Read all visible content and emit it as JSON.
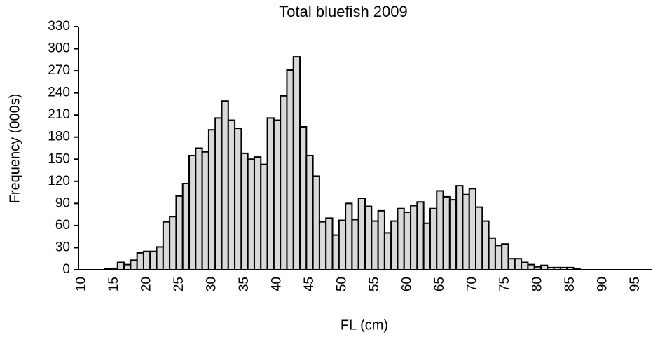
{
  "chart_data": {
    "type": "bar",
    "title": "Total bluefish 2009",
    "x_label": "FL (cm)",
    "y_label": "Frequency (000s)",
    "categories": [
      "10",
      null,
      null,
      null,
      null,
      "15",
      null,
      null,
      null,
      null,
      "20",
      null,
      null,
      null,
      null,
      "25",
      null,
      null,
      null,
      null,
      "30",
      null,
      null,
      null,
      null,
      "35",
      null,
      null,
      null,
      null,
      "40",
      null,
      null,
      null,
      null,
      "45",
      null,
      null,
      null,
      null,
      "50",
      null,
      null,
      null,
      null,
      "55",
      null,
      null,
      null,
      null,
      "60",
      null,
      null,
      null,
      null,
      "65",
      null,
      null,
      null,
      null,
      "70",
      null,
      null,
      null,
      null,
      "75",
      null,
      null,
      null,
      null,
      "80",
      null,
      null,
      null,
      null,
      "85",
      null,
      null,
      null,
      null,
      "90",
      null,
      null,
      null,
      null,
      "95",
      null,
      null
    ],
    "values": [
      0,
      0,
      0,
      0,
      1,
      2,
      10,
      7,
      13,
      23,
      25,
      25,
      31,
      65,
      72,
      100,
      117,
      155,
      165,
      160,
      190,
      206,
      229,
      203,
      192,
      158,
      150,
      153,
      143,
      206,
      203,
      236,
      271,
      289,
      194,
      155,
      127,
      65,
      70,
      47,
      67,
      90,
      68,
      97,
      86,
      66,
      80,
      50,
      66,
      83,
      78,
      87,
      92,
      63,
      83,
      107,
      99,
      95,
      114,
      102,
      110,
      85,
      66,
      43,
      33,
      35,
      15,
      15,
      10,
      7,
      4,
      6,
      3,
      3,
      3,
      3,
      1,
      0,
      0,
      0,
      0,
      0,
      0,
      0,
      0,
      0,
      0,
      0
    ],
    "color": "#d9d9d9",
    "edge_color": "#000000",
    "ylim": [
      0,
      330
    ],
    "yticks": [
      0,
      30,
      60,
      90,
      120,
      150,
      180,
      210,
      240,
      270,
      300,
      330
    ],
    "grid": false
  }
}
